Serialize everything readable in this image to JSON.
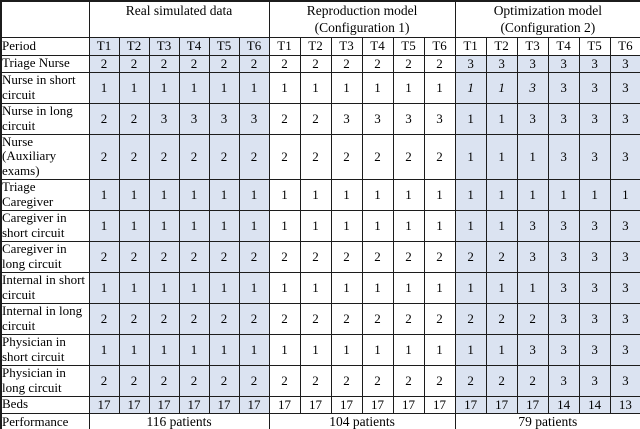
{
  "colors": {
    "cell_shade": "#dbe3f1",
    "border": "#1c1c1c",
    "background": "#ffffff",
    "text": "#000000"
  },
  "table": {
    "corner": "",
    "period_label": "Period",
    "period_columns": [
      "T1",
      "T2",
      "T3",
      "T4",
      "T5",
      "T6"
    ],
    "sections": [
      {
        "key": "real",
        "title": "Real simulated data",
        "subtitle": "",
        "period_shaded": true,
        "data_shaded": true
      },
      {
        "key": "repro",
        "title": "Reproduction model",
        "subtitle": "(Configuration 1)",
        "period_shaded": false,
        "data_shaded": false
      },
      {
        "key": "opt",
        "title": "Optimization model",
        "subtitle": "(Configuration 2)",
        "period_shaded": false,
        "data_shaded": true
      }
    ],
    "rows": [
      {
        "label": "Triage Nurse",
        "lines": 1,
        "real": [
          "2",
          "2",
          "2",
          "2",
          "2",
          "2"
        ],
        "repro": [
          "2",
          "2",
          "2",
          "2",
          "2",
          "2"
        ],
        "opt": [
          "3",
          "3",
          "3",
          "3",
          "3",
          "3"
        ]
      },
      {
        "label": "Nurse in short circuit",
        "lines": 2,
        "real": [
          "1",
          "1",
          "1",
          "1",
          "1",
          "1"
        ],
        "repro": [
          "1",
          "1",
          "1",
          "1",
          "1",
          "1"
        ],
        "opt": [
          "1",
          "1",
          "3",
          "3",
          "3",
          "3"
        ],
        "opt_italic_cols": [
          0,
          1,
          2
        ]
      },
      {
        "label": "Nurse in long circuit",
        "lines": 2,
        "real": [
          "2",
          "2",
          "3",
          "3",
          "3",
          "3"
        ],
        "repro": [
          "2",
          "2",
          "3",
          "3",
          "3",
          "3"
        ],
        "opt": [
          "1",
          "1",
          "3",
          "3",
          "3",
          "3"
        ]
      },
      {
        "label": "Nurse (Auxiliary exams)",
        "lines": 3,
        "real": [
          "2",
          "2",
          "2",
          "2",
          "2",
          "2"
        ],
        "repro": [
          "2",
          "2",
          "2",
          "2",
          "2",
          "2"
        ],
        "opt": [
          "1",
          "1",
          "1",
          "3",
          "3",
          "3"
        ]
      },
      {
        "label": "Triage Caregiver",
        "lines": 2,
        "real": [
          "1",
          "1",
          "1",
          "1",
          "1",
          "1"
        ],
        "repro": [
          "1",
          "1",
          "1",
          "1",
          "1",
          "1"
        ],
        "opt": [
          "1",
          "1",
          "1",
          "1",
          "1",
          "1"
        ]
      },
      {
        "label": "Caregiver in short circuit",
        "lines": 2,
        "real": [
          "1",
          "1",
          "1",
          "1",
          "1",
          "1"
        ],
        "repro": [
          "1",
          "1",
          "1",
          "1",
          "1",
          "1"
        ],
        "opt": [
          "1",
          "1",
          "3",
          "3",
          "3",
          "3"
        ]
      },
      {
        "label": "Caregiver in long circuit",
        "lines": 2,
        "real": [
          "2",
          "2",
          "2",
          "2",
          "2",
          "2"
        ],
        "repro": [
          "2",
          "2",
          "2",
          "2",
          "2",
          "2"
        ],
        "opt": [
          "2",
          "2",
          "3",
          "3",
          "3",
          "3"
        ]
      },
      {
        "label": "Internal in short circuit",
        "lines": 2,
        "real": [
          "1",
          "1",
          "1",
          "1",
          "1",
          "1"
        ],
        "repro": [
          "1",
          "1",
          "1",
          "1",
          "1",
          "1"
        ],
        "opt": [
          "1",
          "1",
          "1",
          "3",
          "3",
          "3"
        ]
      },
      {
        "label": "Internal in long circuit",
        "lines": 2,
        "real": [
          "2",
          "2",
          "2",
          "2",
          "2",
          "2"
        ],
        "repro": [
          "2",
          "2",
          "2",
          "2",
          "2",
          "2"
        ],
        "opt": [
          "2",
          "2",
          "2",
          "3",
          "3",
          "3"
        ]
      },
      {
        "label": "Physician in short circuit",
        "lines": 2,
        "real": [
          "1",
          "1",
          "1",
          "1",
          "1",
          "1"
        ],
        "repro": [
          "1",
          "1",
          "1",
          "1",
          "1",
          "1"
        ],
        "opt": [
          "1",
          "1",
          "3",
          "3",
          "3",
          "3"
        ]
      },
      {
        "label": "Physician in long circuit",
        "lines": 2,
        "real": [
          "2",
          "2",
          "2",
          "2",
          "2",
          "2"
        ],
        "repro": [
          "2",
          "2",
          "2",
          "2",
          "2",
          "2"
        ],
        "opt": [
          "2",
          "2",
          "2",
          "3",
          "3",
          "3"
        ]
      },
      {
        "label": "Beds",
        "lines": 1,
        "real": [
          "17",
          "17",
          "17",
          "17",
          "17",
          "17"
        ],
        "repro": [
          "17",
          "17",
          "17",
          "17",
          "17",
          "17"
        ],
        "opt": [
          "17",
          "17",
          "17",
          "14",
          "14",
          "13"
        ]
      }
    ],
    "performance": {
      "label": "Performance",
      "values": {
        "real": "116 patients",
        "repro": "104 patients",
        "opt": "79 patients"
      }
    }
  }
}
